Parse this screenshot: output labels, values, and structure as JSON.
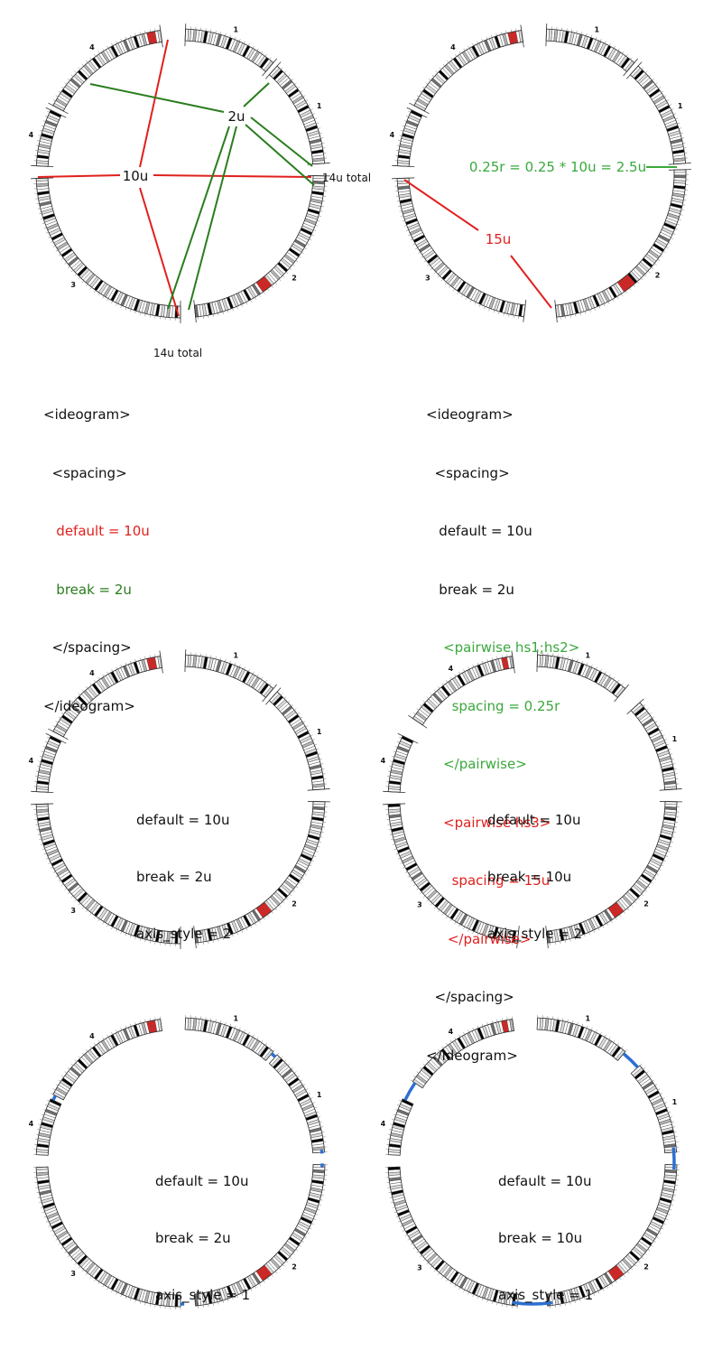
{
  "colors": {
    "red": "#e0201e",
    "green": "#2a7d1e",
    "light_green": "#3aa83c",
    "blue": "#2c6fd1",
    "black": "#000000",
    "band_dark": "#6e6e6e",
    "band_mid": "#b4b4b4",
    "band_light": "#dcdcdc"
  },
  "chromosome_labels": [
    "1",
    "1",
    "2",
    "3",
    "4",
    "4"
  ],
  "panel_a": {
    "annotations": {
      "default_gap": "10u",
      "break_gap": "2u",
      "total_right": "14u total",
      "total_bottom": "14u total"
    },
    "config_lines": [
      "<ideogram>",
      "  <spacing>",
      "   default = 10u",
      "   break = 2u",
      "  </spacing>",
      "</ideogram>"
    ]
  },
  "panel_b": {
    "annotations": {
      "pairwise_hs1_hs2": "0.25r = 0.25 * 10u = 2.5u",
      "pairwise_hs3": "15u"
    },
    "config_lines": [
      "<ideogram>",
      "  <spacing>",
      "   default = 10u",
      "   break = 2u",
      "    <pairwise hs1;hs2>",
      "      spacing = 0.25r",
      "    </pairwise>",
      "    <pairwise hs3>",
      "      spacing = 15u",
      "     </pairwise>",
      "  </spacing>",
      "</ideogram>"
    ]
  },
  "panel_c": {
    "lines": [
      "default = 10u",
      "break = 2u",
      "axis_style = 2"
    ]
  },
  "panel_d": {
    "lines": [
      "default = 10u",
      "break = 10u",
      "axis_style = 2"
    ]
  },
  "panel_e": {
    "lines": [
      "default = 10u",
      "break = 2u",
      "axis_style = 1"
    ]
  },
  "panel_f": {
    "lines": [
      "default = 10u",
      "break = 10u",
      "axis_style = 1"
    ]
  }
}
